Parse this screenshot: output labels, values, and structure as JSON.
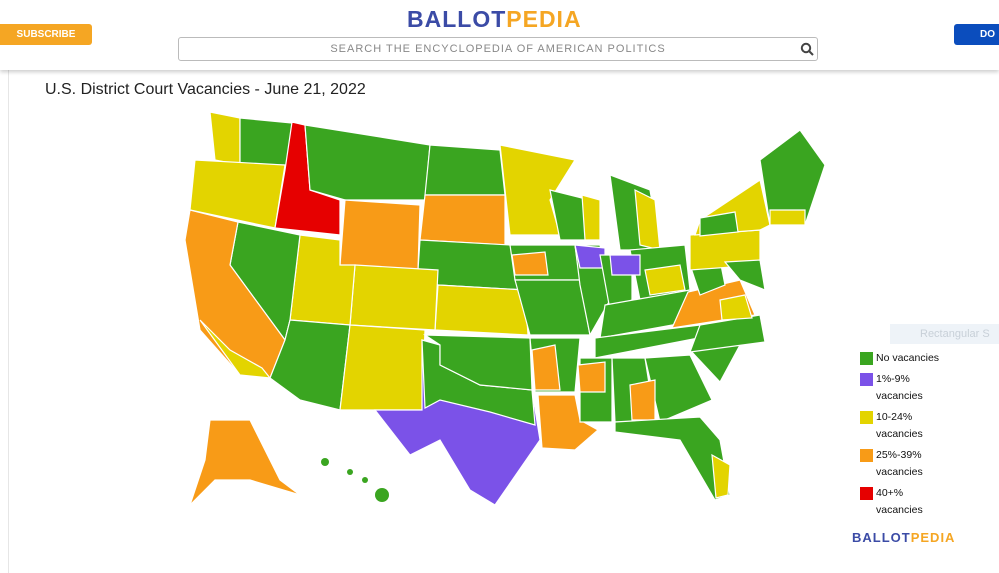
{
  "header": {
    "logo": {
      "first": "BALLOT",
      "second": "PEDIA"
    },
    "subscribe": "SUBSCRIBE",
    "search_placeholder": "SEARCH THE ENCYCLOPEDIA OF AMERICAN POLITICS",
    "donate": "DO"
  },
  "map": {
    "title": "U.S. District Court Vacancies - June 21, 2022",
    "legend": [
      {
        "label": "No vacancies",
        "color": "#3aa520"
      },
      {
        "label": "1%-9% vacancies",
        "color": "#7b52e8"
      },
      {
        "label": "10-24% vacancies",
        "color": "#e3d400"
      },
      {
        "label": "25%-39% vacancies",
        "color": "#f89b17"
      },
      {
        "label": "40+% vacancies",
        "color": "#e60000"
      }
    ]
  },
  "overlay_text": "Rectangular S",
  "footer_logo": {
    "first": "BALLOT",
    "second": "PEDIA"
  }
}
